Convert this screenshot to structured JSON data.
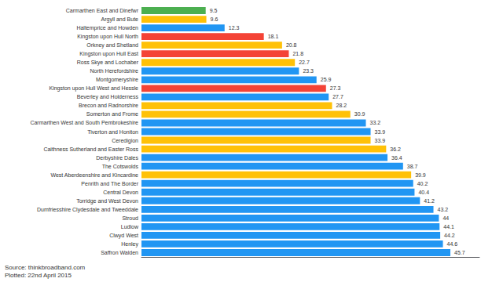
{
  "chart_data": {
    "type": "bar",
    "orientation": "horizontal",
    "categories": [
      "Carmarthen East and Dinefwr",
      "Argyll and Bute",
      "Haltemprice and Howden",
      "Kingston upon Hull North",
      "Orkney and Shetland",
      "Kingston upon Hull East",
      "Ross Skye and Lochaber",
      "North Herefordshire",
      "Montgomeryshire",
      "Kingston upon Hull West and Hessle",
      "Beverley and Holderness",
      "Brecon and Radnorshire",
      "Somerton and Frome",
      "Carmarthen West and South Pembrokeshire",
      "Tiverton and Honiton",
      "Ceredigion",
      "Caithness Sutherland and Easter Ross",
      "Derbyshire Dales",
      "The Cotswolds",
      "West Aberdeenshire and Kincardine",
      "Penrith and The Border",
      "Central Devon",
      "Torridge and West Devon",
      "Dumfriesshire Clydesdale and Tweeddale",
      "Stroud",
      "Ludlow",
      "Clwyd West",
      "Henley",
      "Saffron Walden"
    ],
    "values": [
      9.5,
      9.6,
      12.3,
      18.1,
      20.8,
      21.8,
      22.7,
      23.3,
      25.9,
      27.3,
      27.7,
      28.2,
      30.9,
      33.2,
      33.9,
      33.9,
      36.2,
      36.4,
      38.7,
      39.9,
      40.2,
      40.4,
      41.2,
      43.2,
      44.0,
      44.1,
      44.2,
      44.6,
      45.7
    ],
    "colors": [
      "#4caf50",
      "#ffc107",
      "#2196f3",
      "#f44336",
      "#ffc107",
      "#f44336",
      "#ffc107",
      "#2196f3",
      "#2196f3",
      "#f44336",
      "#2196f3",
      "#ffc107",
      "#ffc107",
      "#2196f3",
      "#2196f3",
      "#ffc107",
      "#ffc107",
      "#2196f3",
      "#2196f3",
      "#ffc107",
      "#2196f3",
      "#2196f3",
      "#2196f3",
      "#2196f3",
      "#2196f3",
      "#2196f3",
      "#2196f3",
      "#2196f3",
      "#2196f3"
    ],
    "xlim": [
      0,
      50
    ],
    "data_labels": true,
    "tick_labels": "y",
    "grid": false,
    "annotations": [
      "Source: thinkbroadband.com\nPlotted: 22nd April 2015"
    ]
  }
}
